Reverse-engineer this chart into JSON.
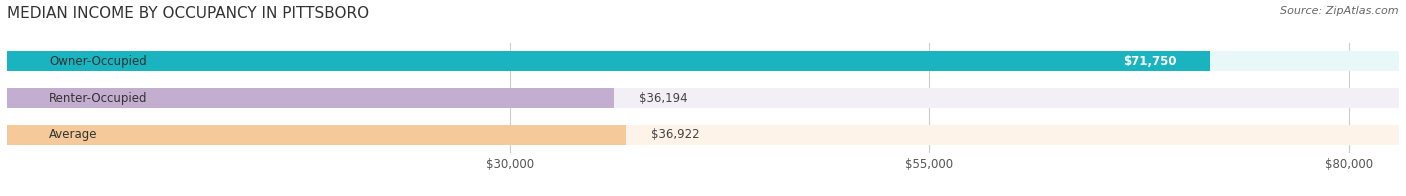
{
  "title": "MEDIAN INCOME BY OCCUPANCY IN PITTSBORO",
  "source": "Source: ZipAtlas.com",
  "categories": [
    "Owner-Occupied",
    "Renter-Occupied",
    "Average"
  ],
  "values": [
    71750,
    36194,
    36922
  ],
  "bar_colors": [
    "#1ab3c0",
    "#c4aed0",
    "#f5c99a"
  ],
  "bar_bg_colors": [
    "#e8f8f9",
    "#f3eff7",
    "#fdf3e8"
  ],
  "value_labels": [
    "$71,750",
    "$36,194",
    "$36,922"
  ],
  "xlim": [
    0,
    83000
  ],
  "xticks": [
    30000,
    55000,
    80000
  ],
  "xtick_labels": [
    "$30,000",
    "$55,000",
    "$80,000"
  ],
  "title_fontsize": 11,
  "source_fontsize": 8,
  "bar_label_fontsize": 8.5,
  "category_fontsize": 8.5,
  "tick_fontsize": 8.5,
  "title_color": "#333333",
  "source_color": "#666666",
  "bar_height": 0.55
}
